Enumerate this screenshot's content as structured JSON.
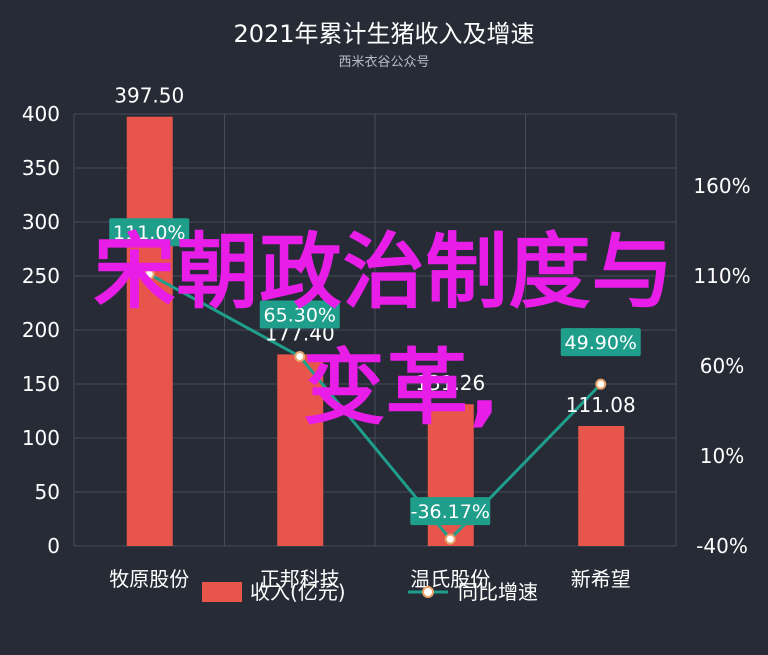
{
  "chart_data": {
    "type": "bar",
    "title": "2021年累计生猪收入及增速",
    "subtitle": "西米衣谷公众号",
    "categories": [
      "牧原股份",
      "正邦科技",
      "温氏股份",
      "新希望"
    ],
    "series": [
      {
        "name": "收入(亿元)",
        "type": "bar",
        "values": [
          397.5,
          177.4,
          131.26,
          111.08
        ],
        "labels": [
          "397.50",
          "177.40",
          "131.26",
          "111.08"
        ],
        "color": "#e8554a"
      },
      {
        "name": "同比增速",
        "type": "line",
        "axis": "right",
        "values": [
          111.0,
          65.3,
          -36.17,
          49.9
        ],
        "labels": [
          "111.0%",
          "65.30%",
          "-36.17%",
          "49.90%"
        ],
        "color": "#1f9e8c"
      }
    ],
    "y_left": {
      "ticks": [
        "0",
        "50",
        "100",
        "150",
        "200",
        "250",
        "300",
        "350",
        "400"
      ],
      "ylim": [
        0,
        400
      ]
    },
    "y_right": {
      "ticks": [
        "-40%",
        "10%",
        "60%",
        "110%",
        "160%"
      ],
      "ylim": [
        -40,
        200
      ]
    },
    "grid": true,
    "legend_position": "bottom"
  },
  "overlay_text": {
    "line1": "宋朝政治制度与",
    "line2": "变革,"
  }
}
